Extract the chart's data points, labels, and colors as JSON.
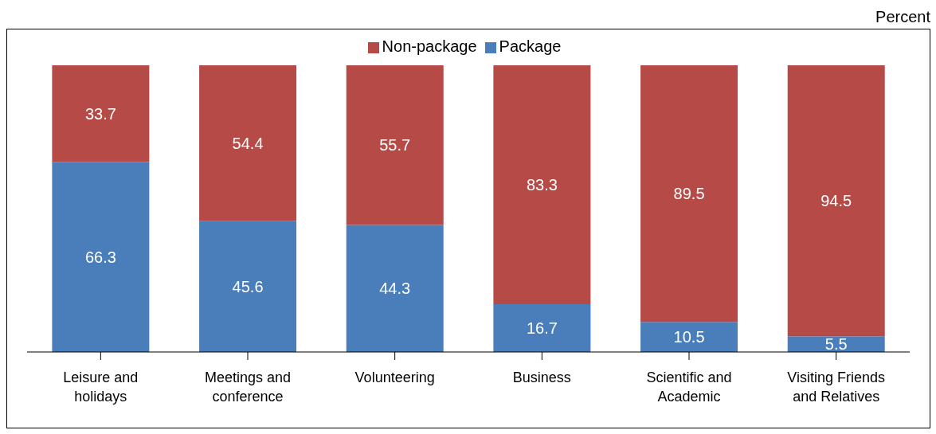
{
  "chart_data": {
    "type": "bar",
    "stacked": true,
    "categories": [
      "Leisure and holidays",
      "Meetings and conference",
      "Volunteering",
      "Business",
      "Scientific and Academic",
      "Visiting Friends and Relatives"
    ],
    "series": [
      {
        "name": "Package",
        "color": "#4a7ebb",
        "values": [
          66.3,
          45.6,
          44.3,
          16.7,
          10.5,
          5.5
        ]
      },
      {
        "name": "Non-package",
        "color": "#b64a47",
        "values": [
          33.7,
          54.4,
          55.7,
          83.3,
          89.5,
          94.5
        ]
      }
    ],
    "data_labels": true,
    "legend": "top",
    "annotations": [
      "Percent"
    ]
  }
}
